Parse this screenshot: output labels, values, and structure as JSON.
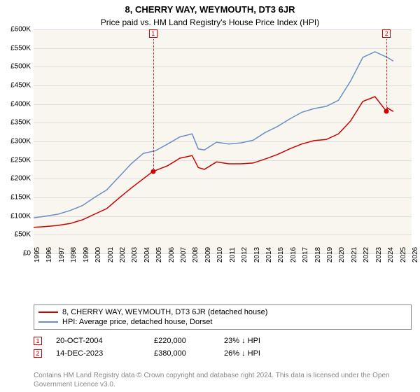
{
  "title_line1": "8, CHERRY WAY, WEYMOUTH, DT3 6JR",
  "title_line2": "Price paid vs. HM Land Registry's House Price Index (HPI)",
  "chart": {
    "type": "line",
    "background_color": "#f8f6ee",
    "grid_color": "#dddddd",
    "ylim": [
      0,
      600000
    ],
    "ytick_step": 50000,
    "ytick_labels": [
      "£0",
      "£50K",
      "£100K",
      "£150K",
      "£200K",
      "£250K",
      "£300K",
      "£350K",
      "£400K",
      "£450K",
      "£500K",
      "£550K",
      "£600K"
    ],
    "xlim": [
      1995,
      2026
    ],
    "xtick_labels": [
      "1995",
      "1996",
      "1997",
      "1998",
      "1999",
      "2000",
      "2001",
      "2002",
      "2003",
      "2004",
      "2005",
      "2006",
      "2007",
      "2008",
      "2009",
      "2010",
      "2011",
      "2012",
      "2013",
      "2014",
      "2015",
      "2016",
      "2017",
      "2018",
      "2019",
      "2020",
      "2021",
      "2022",
      "2023",
      "2024",
      "2025",
      "2026"
    ],
    "tick_fontsize": 10,
    "series": [
      {
        "name": "8, CHERRY WAY, WEYMOUTH, DT3 6JR (detached house)",
        "color": "#cc0000",
        "line_width": 1.5,
        "x": [
          1995,
          1996,
          1997,
          1998,
          1999,
          2000,
          2001,
          2002,
          2003,
          2004,
          2004.8,
          2005,
          2006,
          2007,
          2008,
          2008.5,
          2009,
          2010,
          2011,
          2012,
          2013,
          2014,
          2015,
          2016,
          2017,
          2018,
          2019,
          2020,
          2021,
          2022,
          2023,
          2023.95,
          2024,
          2024.5
        ],
        "y": [
          70000,
          72000,
          75000,
          80000,
          90000,
          105000,
          120000,
          148000,
          175000,
          200000,
          220000,
          222000,
          235000,
          255000,
          262000,
          230000,
          225000,
          245000,
          240000,
          240000,
          242000,
          253000,
          265000,
          280000,
          293000,
          302000,
          305000,
          320000,
          355000,
          407000,
          420000,
          380000,
          390000,
          380000
        ]
      },
      {
        "name": "HPI: Average price, detached house, Dorset",
        "color": "#6b8fc4",
        "line_width": 1.5,
        "x": [
          1995,
          1996,
          1997,
          1998,
          1999,
          2000,
          2001,
          2002,
          2003,
          2004,
          2005,
          2006,
          2007,
          2008,
          2008.5,
          2009,
          2010,
          2011,
          2012,
          2013,
          2014,
          2015,
          2016,
          2017,
          2018,
          2019,
          2020,
          2021,
          2022,
          2023,
          2024,
          2024.5
        ],
        "y": [
          95000,
          100000,
          105000,
          115000,
          128000,
          150000,
          170000,
          205000,
          240000,
          268000,
          275000,
          293000,
          312000,
          320000,
          280000,
          277000,
          298000,
          293000,
          296000,
          303000,
          324000,
          340000,
          360000,
          378000,
          388000,
          394000,
          410000,
          462000,
          525000,
          540000,
          525000,
          515000
        ]
      }
    ],
    "markers": [
      {
        "num": "1",
        "x": 2004.8,
        "y": 220000,
        "box_color": "#cc0000"
      },
      {
        "num": "2",
        "x": 2023.95,
        "y": 380000,
        "box_color": "#cc0000"
      }
    ]
  },
  "legend": {
    "items": [
      {
        "color": "#cc0000",
        "label": "8, CHERRY WAY, WEYMOUTH, DT3 6JR (detached house)"
      },
      {
        "color": "#6b8fc4",
        "label": "HPI: Average price, detached house, Dorset"
      }
    ]
  },
  "events": [
    {
      "num": "1",
      "date": "20-OCT-2004",
      "price": "£220,000",
      "hpi": "23% ↓ HPI"
    },
    {
      "num": "2",
      "date": "14-DEC-2023",
      "price": "£380,000",
      "hpi": "26% ↓ HPI"
    }
  ],
  "attribution": "Contains HM Land Registry data © Crown copyright and database right 2024. This data is licensed under the Open Government Licence v3.0."
}
